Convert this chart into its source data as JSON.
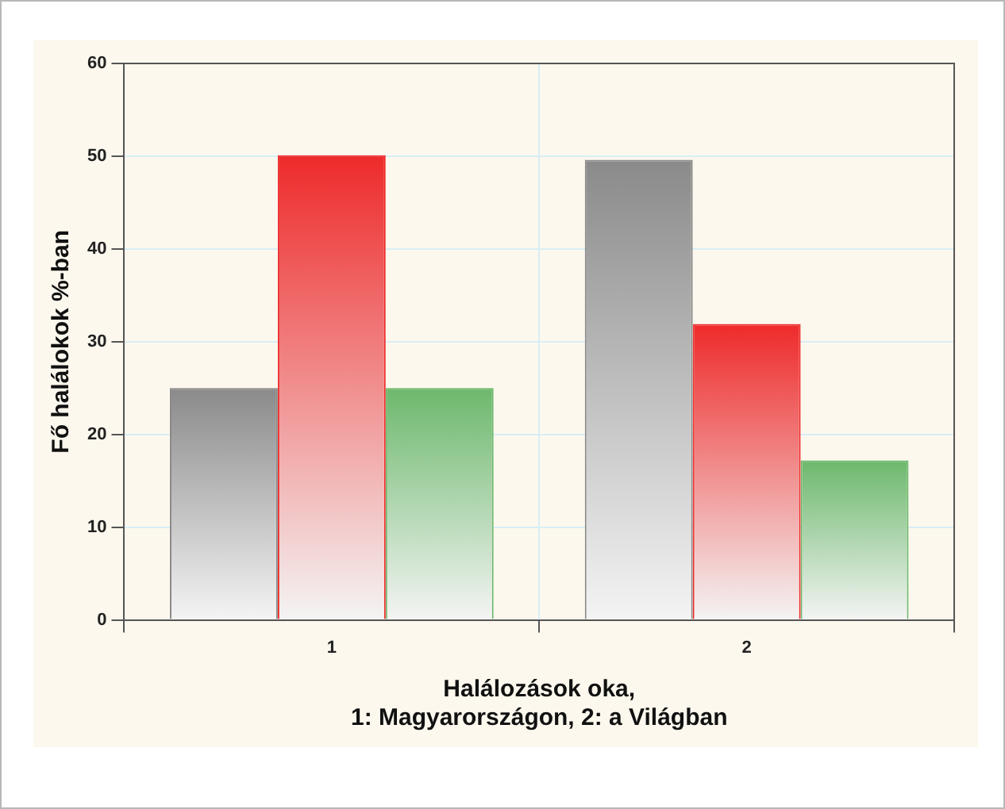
{
  "chart_data": {
    "type": "bar",
    "xlabel": "Halálozások oka,\n1: Magyarországon, 2: a Világban",
    "ylabel": "Fő halálokok %-ban",
    "categories": [
      "1",
      "2"
    ],
    "series": [
      {
        "color": "#8a8a8a",
        "values": [
          25,
          49.6
        ]
      },
      {
        "color": "#ee2a2a",
        "values": [
          50.1,
          31.9
        ]
      },
      {
        "color": "#6cb86c",
        "values": [
          25,
          17.2
        ]
      }
    ],
    "ylim": [
      0,
      60
    ],
    "yticks": [
      0,
      10,
      20,
      30,
      40,
      50,
      60
    ],
    "grid": true,
    "legend": false
  }
}
